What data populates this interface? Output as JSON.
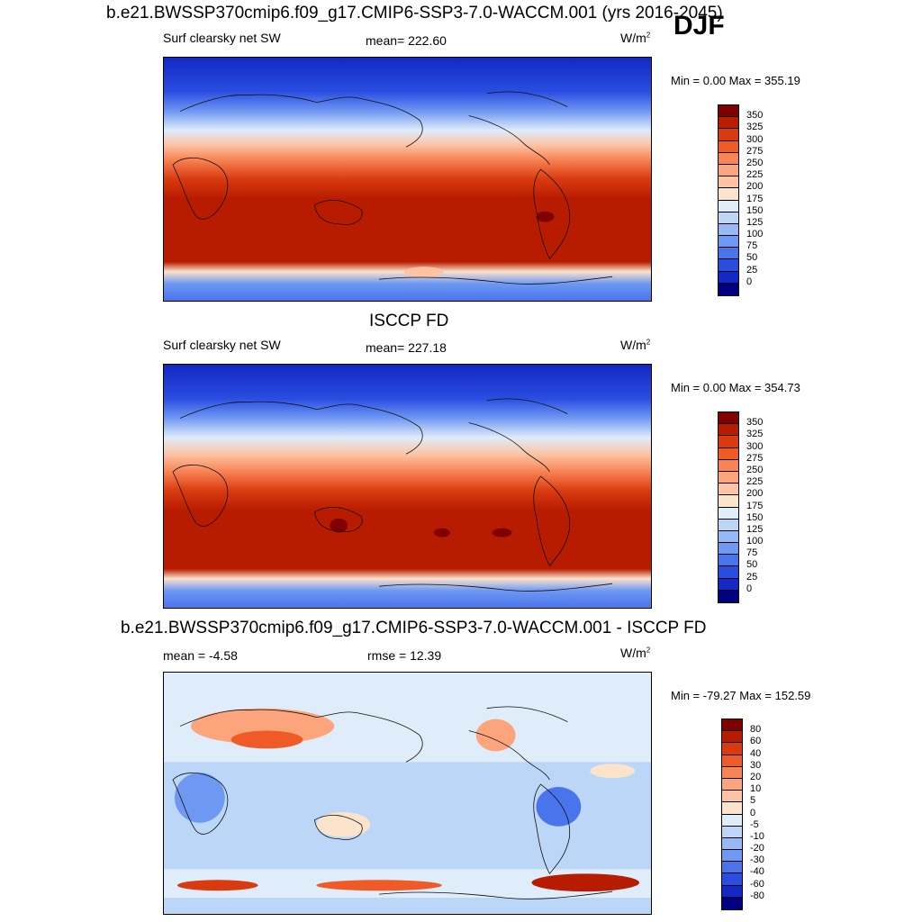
{
  "season": "DJF",
  "panels": [
    {
      "title": "b.e21.BWSSP370cmip6.f09_g17.CMIP6-SSP3-7.0-WACCM.001 (yrs 2016-2045)",
      "left_label": "Surf clearsky net SW",
      "center_label": "mean= 222.60",
      "units_base": "W/m",
      "units_exp": "2",
      "minmax": "Min =   0.00 Max = 355.19",
      "colorbar": {
        "labels": [
          "350",
          "325",
          "300",
          "275",
          "250",
          "225",
          "200",
          "175",
          "150",
          "125",
          "100",
          "75",
          "50",
          "25",
          "0"
        ],
        "colors": [
          "#800000",
          "#b81c00",
          "#d93a10",
          "#f05a26",
          "#f88354",
          "#fca47c",
          "#fdc3a4",
          "#fbe3cc",
          "#dfecfa",
          "#bcd6f7",
          "#96b9f5",
          "#6f98f2",
          "#4a74ec",
          "#2a4de0",
          "#1328c4",
          "#000080"
        ]
      }
    },
    {
      "title": "ISCCP FD",
      "left_label": "Surf clearsky net SW",
      "center_label": "mean= 227.18",
      "units_base": "W/m",
      "units_exp": "2",
      "minmax": "Min =   0.00 Max = 354.73",
      "colorbar": {
        "labels": [
          "350",
          "325",
          "300",
          "275",
          "250",
          "225",
          "200",
          "175",
          "150",
          "125",
          "100",
          "75",
          "50",
          "25",
          "0"
        ],
        "colors": [
          "#800000",
          "#b81c00",
          "#d93a10",
          "#f05a26",
          "#f88354",
          "#fca47c",
          "#fdc3a4",
          "#fbe3cc",
          "#dfecfa",
          "#bcd6f7",
          "#96b9f5",
          "#6f98f2",
          "#4a74ec",
          "#2a4de0",
          "#1328c4",
          "#000080"
        ]
      }
    },
    {
      "title": "b.e21.BWSSP370cmip6.f09_g17.CMIP6-SSP3-7.0-WACCM.001 - ISCCP FD",
      "left_label": "mean =  -4.58",
      "center_label": "rmse =  12.39",
      "units_base": "W/m",
      "units_exp": "2",
      "minmax": "Min = -79.27 Max = 152.59",
      "colorbar": {
        "labels": [
          "80",
          "60",
          "40",
          "30",
          "20",
          "10",
          "5",
          "0",
          "-5",
          "-10",
          "-20",
          "-30",
          "-40",
          "-60",
          "-80"
        ],
        "colors": [
          "#800000",
          "#b81c00",
          "#d93a10",
          "#f05a26",
          "#f88354",
          "#fca47c",
          "#fdc3a4",
          "#fbe3cc",
          "#dfecfa",
          "#bcd6f7",
          "#96b9f5",
          "#6f98f2",
          "#4a74ec",
          "#2a4de0",
          "#1328c4",
          "#000080"
        ]
      }
    }
  ]
}
